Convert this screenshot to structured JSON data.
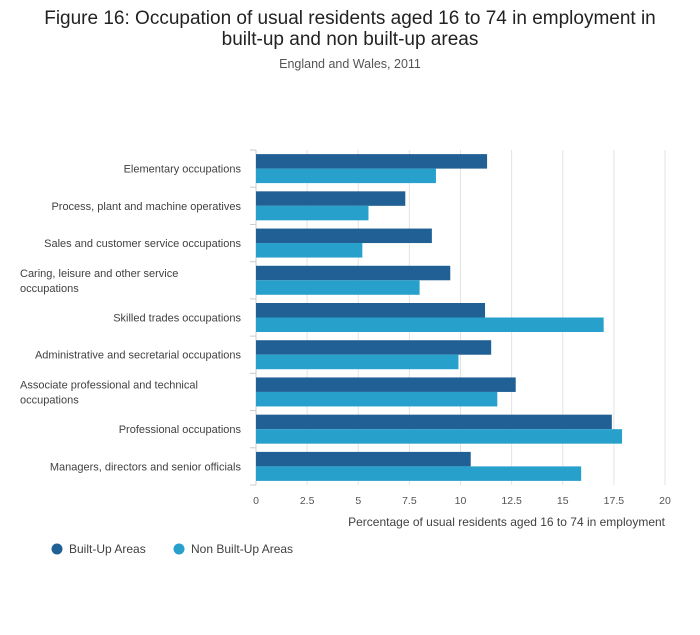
{
  "chart_data": {
    "type": "bar",
    "orientation": "horizontal",
    "title": "Figure 16: Occupation of usual residents aged 16 to 74 in employment in built-up and non built-up areas",
    "title_lines": [
      "Figure 16: Occupation of usual residents aged 16 to 74 in employment in",
      "built-up and non built-up areas"
    ],
    "subtitle": "England and Wales, 2011",
    "xlabel": "Percentage of usual residents aged 16 to 74 in employment",
    "ylabel": "",
    "xlim": [
      0,
      20
    ],
    "xticks": [
      0,
      2.5,
      5,
      7.5,
      10,
      12.5,
      15,
      17.5,
      20
    ],
    "xtick_labels": [
      "0",
      "2.5",
      "5",
      "7.5",
      "10",
      "12.5",
      "15",
      "17.5",
      "20"
    ],
    "grid": true,
    "legend_position": "bottom-left",
    "categories": [
      "Elementary occupations",
      "Process, plant and machine operatives",
      "Sales and customer service occupations",
      "Caring, leisure and other service occupations",
      "Skilled trades occupations",
      "Administrative and secretarial occupations",
      "Associate professional and technical occupations",
      "Professional occupations",
      "Managers, directors and senior officials"
    ],
    "category_lines": [
      [
        "Elementary occupations"
      ],
      [
        "Process, plant and machine operatives"
      ],
      [
        "Sales and customer service occupations"
      ],
      [
        "Caring, leisure and other service",
        "occupations"
      ],
      [
        "Skilled trades occupations"
      ],
      [
        "Administrative and secretarial occupations"
      ],
      [
        "Associate professional and technical",
        "occupations"
      ],
      [
        "Professional occupations"
      ],
      [
        "Managers, directors and senior officials"
      ]
    ],
    "series": [
      {
        "name": "Built-Up Areas",
        "color": "#206095",
        "values": [
          11.3,
          7.3,
          8.6,
          9.5,
          11.2,
          11.5,
          12.7,
          17.4,
          10.5
        ]
      },
      {
        "name": "Non Built-Up Areas",
        "color": "#27a0cc",
        "values": [
          8.8,
          5.5,
          5.2,
          8.0,
          17.0,
          9.9,
          11.8,
          17.9,
          15.9
        ]
      }
    ]
  }
}
